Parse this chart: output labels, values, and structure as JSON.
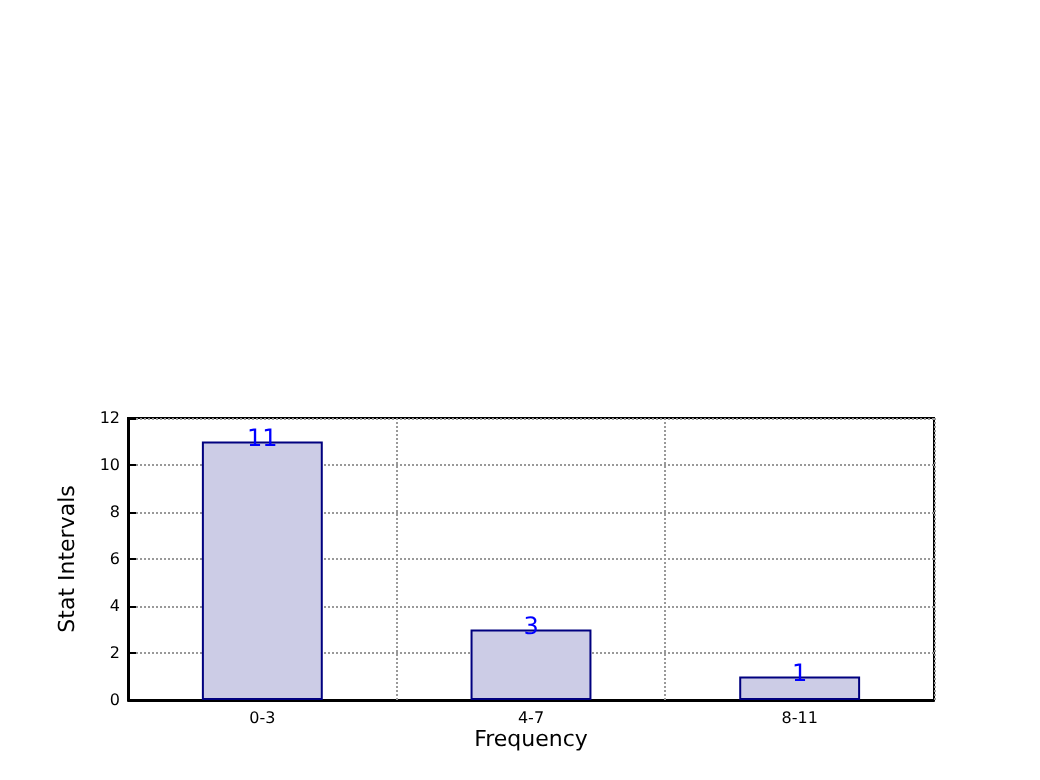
{
  "chart_data": {
    "type": "bar",
    "xlabel": "Frequency",
    "ylabel": "Stat Intervals",
    "categories": [
      "0-3",
      "4-7",
      "8-11"
    ],
    "values": [
      11,
      3,
      1
    ],
    "color": "#cccce6",
    "ylim": [
      0,
      12
    ],
    "yticks": [
      0,
      2,
      4,
      6,
      8,
      10,
      12
    ],
    "grid": true,
    "data_labels": true
  }
}
